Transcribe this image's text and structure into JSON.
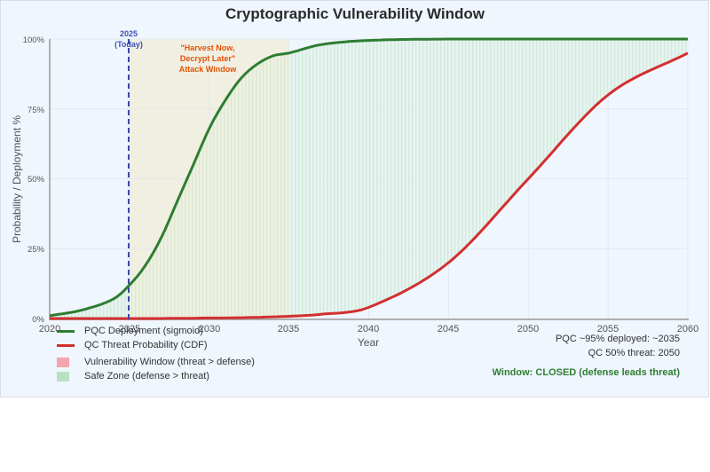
{
  "chart_data": {
    "type": "line",
    "title": "Cryptographic Vulnerability Window",
    "xlabel": "Year",
    "ylabel": "Probability / Deployment %",
    "xlim": [
      2020,
      2060
    ],
    "ylim": [
      0,
      100
    ],
    "x_ticks": [
      "2020",
      "2025",
      "2030",
      "2035",
      "2040",
      "2045",
      "2050",
      "2055",
      "2060"
    ],
    "y_ticks": [
      "0%",
      "25%",
      "50%",
      "75%",
      "100%"
    ],
    "grid": true,
    "x": [
      2020,
      2022,
      2024,
      2025,
      2026,
      2027,
      2028,
      2029,
      2030,
      2031,
      2032,
      2033,
      2034,
      2035,
      2037,
      2040,
      2045,
      2050,
      2055,
      2060
    ],
    "series": [
      {
        "name": "PQC Deployment (sigmoid)",
        "color": "#2e7d32",
        "values": [
          1,
          3,
          7,
          12,
          19,
          29,
          42,
          55,
          68,
          78,
          86,
          91,
          94,
          95,
          98,
          99.5,
          100,
          100,
          100,
          100
        ]
      },
      {
        "name": "QC Threat Probability (CDF)",
        "color": "#d32f2f",
        "values": [
          0,
          0,
          0,
          0,
          0,
          0,
          0.1,
          0.1,
          0.2,
          0.2,
          0.3,
          0.4,
          0.6,
          0.8,
          1.5,
          4,
          20,
          50,
          80,
          95
        ]
      }
    ],
    "regions": [
      {
        "name": "Vulnerability Window (threat > defense)",
        "color": "#f4a6ad",
        "visible": false
      },
      {
        "name": "Safe Zone (defense > threat)",
        "color": "#b7e2c2",
        "from": 2020,
        "to": 2060
      },
      {
        "name": "Harvest Now, Decrypt Later Attack Window",
        "color": "#f1efe2",
        "from": 2025,
        "to": 2035
      }
    ],
    "annotations": [
      {
        "text": "2025 (Today)",
        "x": 2025,
        "type": "vertical-dashed-line",
        "color": "#3949ab"
      },
      {
        "text": "\"Harvest Now, Decrypt Later\" Attack Window",
        "color": "#e65100"
      }
    ],
    "legend_position": "bottom-left"
  },
  "title": "Cryptographic Vulnerability Window",
  "axis": {
    "xlabel": "Year",
    "ylabel": "Probability / Deployment %",
    "xticks": [
      "2020",
      "2025",
      "2030",
      "2035",
      "2040",
      "2045",
      "2050",
      "2055",
      "2060"
    ],
    "yticks": [
      "0%",
      "25%",
      "50%",
      "75%",
      "100%"
    ]
  },
  "today_marker": {
    "line1": "2025",
    "line2": "(Today)"
  },
  "hndl_label": {
    "line1": "\"Harvest Now,",
    "line2": "Decrypt Later\"",
    "line3": "Attack Window"
  },
  "legend": {
    "items": [
      {
        "label": "PQC Deployment (sigmoid)",
        "color": "#2e7d32"
      },
      {
        "label": "QC Threat Probability (CDF)",
        "color": "#d32f2f"
      },
      {
        "label": "Vulnerability Window (threat > defense)",
        "color": "#f4a6ad"
      },
      {
        "label": "Safe Zone (defense > threat)",
        "color": "#b7e2c2"
      }
    ]
  },
  "notes": {
    "pqc": "PQC ~95% deployed: ~2035",
    "qc": "QC 50% threat: 2050",
    "status": "Window: CLOSED (defense leads threat)"
  }
}
